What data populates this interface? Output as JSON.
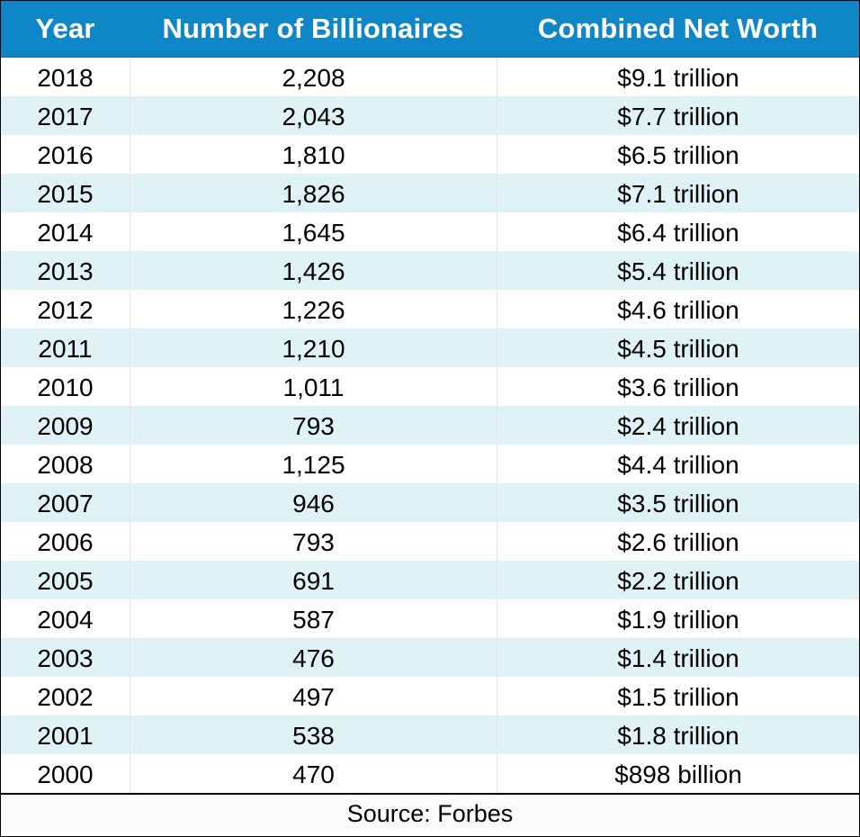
{
  "chart_data": {
    "type": "table",
    "columns": [
      "Year",
      "Number of Billionaires",
      "Combined Net Worth"
    ],
    "rows": [
      [
        "2018",
        "2,208",
        "$9.1 trillion"
      ],
      [
        "2017",
        "2,043",
        "$7.7 trillion"
      ],
      [
        "2016",
        "1,810",
        "$6.5 trillion"
      ],
      [
        "2015",
        "1,826",
        "$7.1 trillion"
      ],
      [
        "2014",
        "1,645",
        "$6.4 trillion"
      ],
      [
        "2013",
        "1,426",
        "$5.4 trillion"
      ],
      [
        "2012",
        "1,226",
        "$4.6 trillion"
      ],
      [
        "2011",
        "1,210",
        "$4.5 trillion"
      ],
      [
        "2010",
        "1,011",
        "$3.6 trillion"
      ],
      [
        "2009",
        "793",
        "$2.4 trillion"
      ],
      [
        "2008",
        "1,125",
        "$4.4 trillion"
      ],
      [
        "2007",
        "946",
        "$3.5 trillion"
      ],
      [
        "2006",
        "793",
        "$2.6 trillion"
      ],
      [
        "2005",
        "691",
        "$2.2 trillion"
      ],
      [
        "2004",
        "587",
        "$1.9 trillion"
      ],
      [
        "2003",
        "476",
        "$1.4 trillion"
      ],
      [
        "2002",
        "497",
        "$1.5 trillion"
      ],
      [
        "2001",
        "538",
        "$1.8 trillion"
      ],
      [
        "2000",
        "470",
        "$898 billion"
      ]
    ],
    "source": "Source: Forbes"
  },
  "colors": {
    "header_background": "#0f86c5",
    "header_text": "#ffffff",
    "stripe_row": "#dff2f6",
    "plain_row": "#ffffff"
  }
}
